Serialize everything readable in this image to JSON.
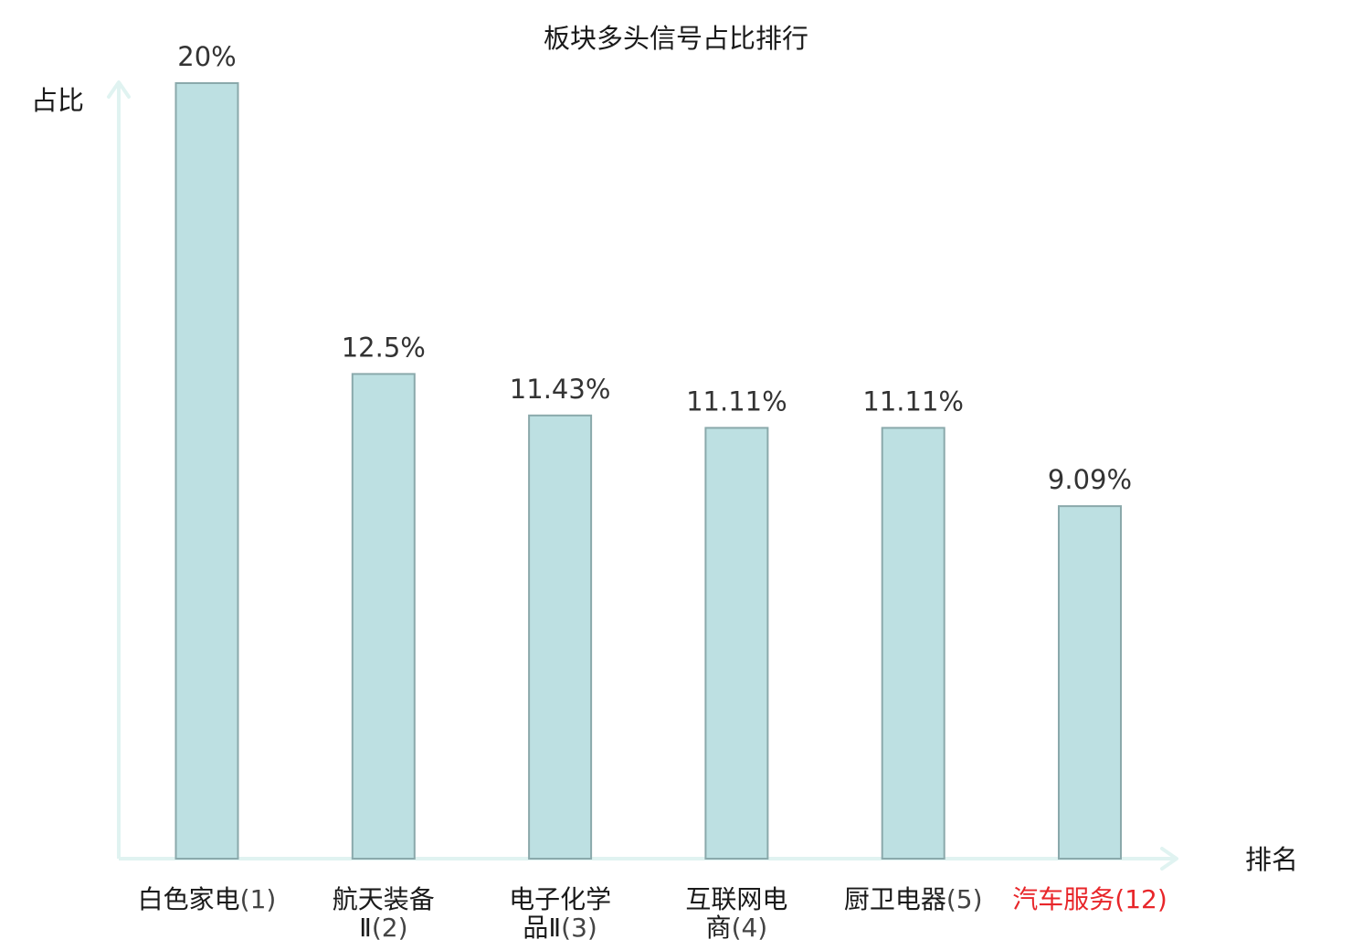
{
  "chart_data": {
    "type": "bar",
    "title": "板块多头信号占比排行",
    "xlabel": "排名",
    "ylabel": "占比",
    "ylim": [
      0,
      20
    ],
    "grid": false,
    "categories": [
      {
        "lines": [
          [
            "白色家电",
            "(1)"
          ]
        ],
        "highlight": false
      },
      {
        "lines": [
          [
            "航天装备",
            ""
          ],
          [
            "Ⅱ",
            "(2)"
          ]
        ],
        "highlight": false
      },
      {
        "lines": [
          [
            "电子化学",
            ""
          ],
          [
            "品Ⅱ",
            "(3)"
          ]
        ],
        "highlight": false
      },
      {
        "lines": [
          [
            "互联网电",
            ""
          ],
          [
            "商",
            "(4)"
          ]
        ],
        "highlight": false
      },
      {
        "lines": [
          [
            "厨卫电器",
            "(5)"
          ]
        ],
        "highlight": false
      },
      {
        "lines": [
          [
            "汽车服务",
            "(12)"
          ]
        ],
        "highlight": true
      }
    ],
    "values": [
      20,
      12.5,
      11.43,
      11.11,
      11.11,
      9.09
    ],
    "value_labels": [
      "20%",
      "12.5%",
      "11.43%",
      "11.11%",
      "11.11%",
      "9.09%"
    ]
  },
  "colors": {
    "bar_fill": "#bde0e2",
    "bar_stroke": "#8aa9ab",
    "axis": "#e0f3f1",
    "text": "#1a1a1a",
    "value_text": "#333333",
    "number_text": "#444444",
    "highlight": "#e8262a"
  }
}
